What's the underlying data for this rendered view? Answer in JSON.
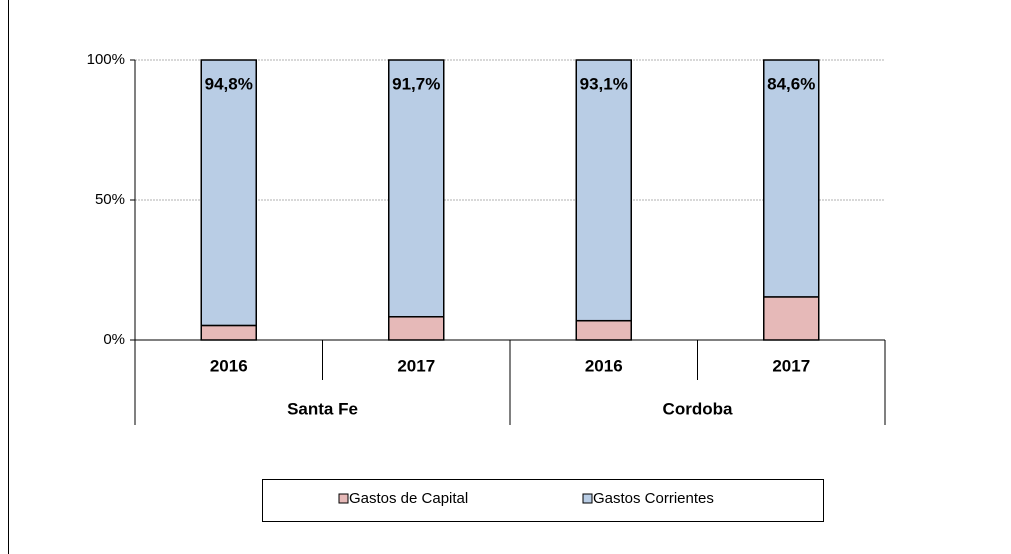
{
  "chart_data": {
    "type": "stacked-bar",
    "categories": [
      "2016",
      "2017",
      "2016",
      "2017"
    ],
    "groups": [
      "Santa Fe",
      "Cordoba"
    ],
    "series": [
      {
        "name": "Gastos de Capital",
        "color": "#e6b9b8",
        "values": [
          5.2,
          8.3,
          6.9,
          15.4
        ],
        "value_labels": [
          "5,2%",
          "8,3%",
          "6,9%",
          "15,4%"
        ]
      },
      {
        "name": "Gastos Corrientes",
        "color": "#b9cde5",
        "values": [
          94.8,
          91.7,
          93.1,
          84.6
        ],
        "value_labels": [
          "94,8%",
          "91,7%",
          "93,1%",
          "84,6%"
        ]
      }
    ],
    "ylim": [
      0,
      100
    ],
    "yticks": [
      {
        "value": 0,
        "label": "0%"
      },
      {
        "value": 50,
        "label": "50%"
      },
      {
        "value": 100,
        "label": "100%"
      }
    ],
    "grid": true,
    "legend": "bottom"
  }
}
